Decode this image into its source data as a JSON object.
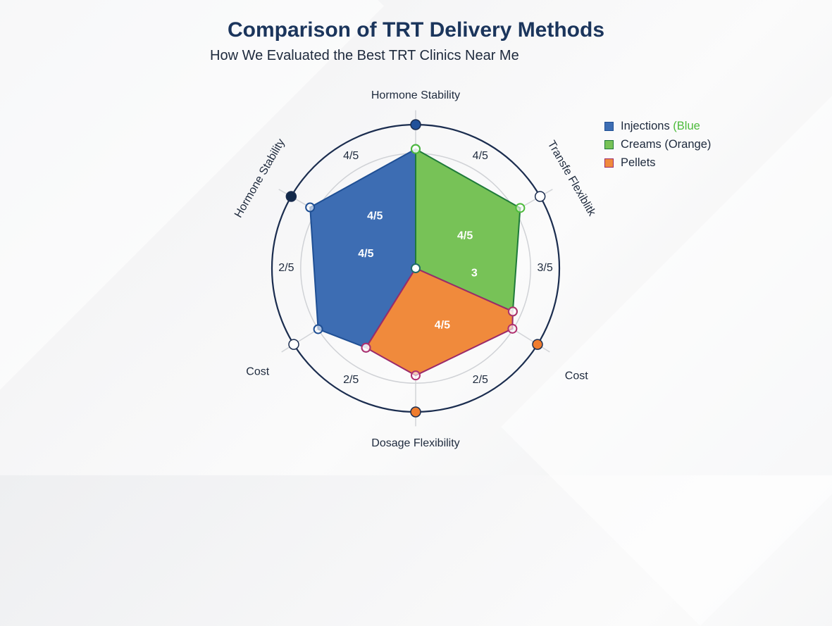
{
  "title": "Comparison of TRT Delivery Methods",
  "subtitle": "How We Evaluated the Best TRT Clinics Near Me",
  "chart_data": {
    "type": "radar",
    "title": "Comparison of TRT Delivery Methods",
    "subtitle": "How We Evaluated the Best TRT Clinics Near Me",
    "scale_max": 5,
    "grid_rings": [
      1.3,
      2.7,
      4.0
    ],
    "axes": [
      {
        "label": "Hormone Stability",
        "angle": 0,
        "marker_color": "#21519a"
      },
      {
        "label": "Transfe Flexiblitk",
        "angle": 60,
        "marker_color": "#ffffff"
      },
      {
        "label": "Cost",
        "angle": 122,
        "marker_color": "#ef7c2e"
      },
      {
        "label": "Dosage Flexibility",
        "angle": 180,
        "marker_color": "#ef7c2e"
      },
      {
        "label": "Cost",
        "angle": 238,
        "marker_color": "#ffffff"
      },
      {
        "label": "Hormone Stability",
        "angle": 300,
        "marker_color": "#12284a"
      }
    ],
    "ring_labels": [
      {
        "text": "4/5",
        "angle": 330
      },
      {
        "text": "4/5",
        "angle": 30
      },
      {
        "text": "3/5",
        "angle": 90
      },
      {
        "text": "2/5",
        "angle": 150
      },
      {
        "text": "2/5",
        "angle": 210
      },
      {
        "text": "2/5",
        "angle": 270
      }
    ],
    "series": [
      {
        "name": "Injections (Blue",
        "fill": "#3d6db3",
        "stroke": "#1f4f94",
        "points": [
          {
            "angle": 0,
            "r": 0
          },
          {
            "angle": 0,
            "r": 4.15
          },
          {
            "angle": 300,
            "r": 4.24
          },
          {
            "angle": 238,
            "r": 4.0
          },
          {
            "angle": 212,
            "r": 3.26
          }
        ],
        "labels": [
          {
            "text": "4/5",
            "angle": 322,
            "r": 2.3
          },
          {
            "text": "4/5",
            "angle": 286,
            "r": 1.8
          }
        ]
      },
      {
        "name": "Creams (Orange)",
        "fill": "#77c257",
        "stroke": "#1f7a3a",
        "points": [
          {
            "angle": 0,
            "r": 0
          },
          {
            "angle": 0,
            "r": 4.15
          },
          {
            "angle": 60,
            "r": 4.2
          },
          {
            "angle": 114,
            "r": 3.7
          }
        ],
        "labels": [
          {
            "text": "4/5",
            "angle": 57,
            "r": 2.05
          },
          {
            "text": "3",
            "angle": 95,
            "r": 2.05
          }
        ]
      },
      {
        "name": "Pellets",
        "fill": "#f08a3c",
        "stroke": "#9b2a6a",
        "points": [
          {
            "angle": 0,
            "r": 0
          },
          {
            "angle": 114,
            "r": 3.7
          },
          {
            "angle": 122,
            "r": 3.97
          },
          {
            "angle": 180,
            "r": 3.73
          },
          {
            "angle": 212,
            "r": 3.26
          }
        ],
        "labels": [
          {
            "text": "4/5",
            "angle": 155,
            "r": 2.2
          }
        ]
      }
    ],
    "legend": "top-right"
  }
}
